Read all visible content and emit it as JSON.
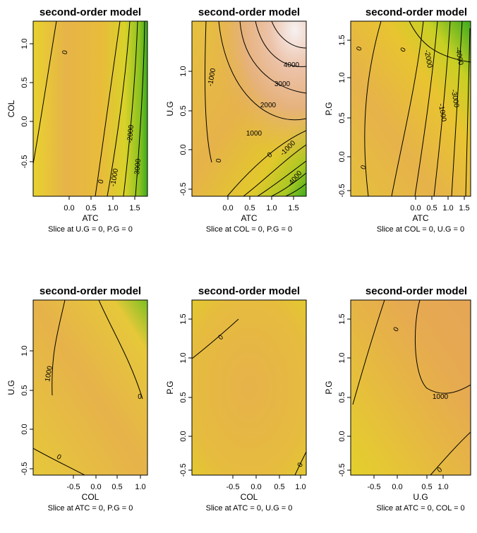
{
  "chart_data": [
    {
      "type": "contour",
      "title": "second-order model",
      "xlabel": "ATC",
      "ylabel": "COL",
      "subtitle": "Slice at U.G = 0, P.G = 0",
      "xlim": [
        -0.45,
        1.75
      ],
      "ylim": [
        -0.95,
        1.1
      ],
      "x_ticks": [
        "0.0",
        "0.5",
        "1.0",
        "1.5"
      ],
      "y_ticks": [
        "-0.5",
        "0.0",
        "0.5",
        "1.0"
      ],
      "contour_labels": [
        "0",
        "0",
        "-1000",
        "-2000",
        "-3000"
      ],
      "colors": {
        "low": "#3cab1e",
        "mid": "#e8d428",
        "high": "#f5eeee",
        "base": "#e6b24a"
      }
    },
    {
      "type": "contour",
      "title": "second-order model",
      "xlabel": "ATC",
      "ylabel": "U.G",
      "subtitle": "Slice at COL = 0, P.G = 0",
      "xlim": [
        -0.45,
        1.75
      ],
      "ylim": [
        -0.6,
        1.5
      ],
      "x_ticks": [
        "0.0",
        "0.5",
        "1.0",
        "1.5"
      ],
      "y_ticks": [
        "-0.5",
        "0.0",
        "0.5",
        "1.0"
      ],
      "contour_labels": [
        "4000",
        "3000",
        "2000",
        "1000",
        "0",
        "-1000",
        "0",
        "-1000",
        "-4000"
      ],
      "colors": {
        "low": "#3cab1e",
        "mid": "#e8d428",
        "high": "#f5eeee",
        "base": "#e6b24a"
      }
    },
    {
      "type": "contour",
      "title": "second-order model",
      "xlabel": "ATC",
      "ylabel": "P.G",
      "subtitle": "Slice at COL = 0, U.G = 0",
      "xlim": [
        -0.45,
        1.75
      ],
      "ylim": [
        -0.6,
        1.5
      ],
      "x_ticks": [
        "0.0",
        "0.5",
        "1.0",
        "1.5"
      ],
      "y_ticks": [
        "-0.5",
        "0.0",
        "0.5",
        "1.0",
        "1.5"
      ],
      "contour_labels": [
        "0",
        "0",
        "-2000",
        "-4000",
        "-1000",
        "-3000",
        "0"
      ],
      "colors": {
        "low": "#3cab1e",
        "mid": "#e8d428",
        "high": "#f5eeee",
        "base": "#e6b24a"
      }
    },
    {
      "type": "contour",
      "title": "second-order model",
      "xlabel": "COL",
      "ylabel": "U.G",
      "subtitle": "Slice at ATC = 0, P.G = 0",
      "xlim": [
        -0.95,
        1.1
      ],
      "ylim": [
        -0.6,
        1.5
      ],
      "x_ticks": [
        "-0.5",
        "0.0",
        "0.5",
        "1.0"
      ],
      "y_ticks": [
        "-0.5",
        "0.0",
        "0.5",
        "1.0"
      ],
      "contour_labels": [
        "1000",
        "0",
        "0"
      ],
      "colors": {
        "low": "#3cab1e",
        "mid": "#e8d428",
        "high": "#f5eeee",
        "base": "#e6b24a"
      }
    },
    {
      "type": "contour",
      "title": "second-order model",
      "xlabel": "COL",
      "ylabel": "P.G",
      "subtitle": "Slice at ATC = 0, U.G = 0",
      "xlim": [
        -0.95,
        1.1
      ],
      "ylim": [
        -0.6,
        1.5
      ],
      "x_ticks": [
        "-0.5",
        "0.0",
        "0.5",
        "1.0"
      ],
      "y_ticks": [
        "-0.5",
        "0.0",
        "0.5",
        "1.0",
        "1.5"
      ],
      "contour_labels": [
        "0",
        "0"
      ],
      "colors": {
        "low": "#3cab1e",
        "mid": "#e8d428",
        "high": "#f5eeee",
        "base": "#e6b24a"
      }
    },
    {
      "type": "contour",
      "title": "second-order model",
      "xlabel": "U.G",
      "ylabel": "P.G",
      "subtitle": "Slice at ATC = 0, COL = 0",
      "xlim": [
        -0.6,
        1.5
      ],
      "ylim": [
        -0.6,
        1.5
      ],
      "x_ticks": [
        "-0.5",
        "0.0",
        "0.5",
        "1.0"
      ],
      "y_ticks": [
        "-0.5",
        "0.0",
        "0.5",
        "1.0",
        "1.5"
      ],
      "contour_labels": [
        "0",
        "1000",
        "0"
      ],
      "colors": {
        "low": "#3cab1e",
        "mid": "#e8d428",
        "high": "#f5eeee",
        "base": "#e6b24a"
      }
    }
  ]
}
